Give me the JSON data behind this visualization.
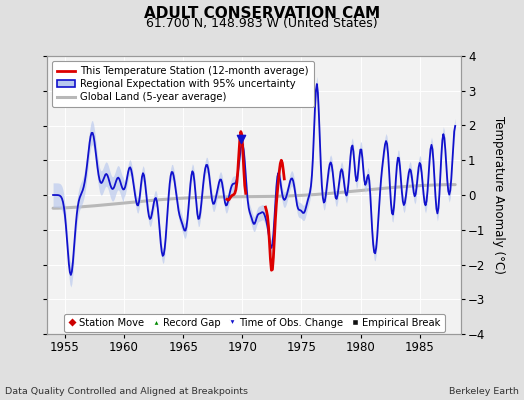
{
  "title": "ADULT CONSERVATION CAM",
  "subtitle": "61.700 N, 148.983 W (United States)",
  "ylabel": "Temperature Anomaly (°C)",
  "xlabel_left": "Data Quality Controlled and Aligned at Breakpoints",
  "xlabel_right": "Berkeley Earth",
  "xlim": [
    1953.5,
    1988.5
  ],
  "ylim": [
    -4,
    4
  ],
  "yticks": [
    -4,
    -3,
    -2,
    -1,
    0,
    1,
    2,
    3,
    4
  ],
  "xticks": [
    1955,
    1960,
    1965,
    1970,
    1975,
    1980,
    1985
  ],
  "background_color": "#e0e0e0",
  "plot_bg_color": "#f2f2f2",
  "legend_entries": [
    "This Temperature Station (12-month average)",
    "Regional Expectation with 95% uncertainty",
    "Global Land (5-year average)"
  ],
  "station_color": "#dd0000",
  "regional_color": "#1111cc",
  "regional_fill_color": "#b8c8ee",
  "global_color": "#b8b8b8",
  "global_linewidth": 2.5,
  "marker_legend": [
    {
      "label": "Station Move",
      "color": "#cc0000",
      "marker": "D"
    },
    {
      "label": "Record Gap",
      "color": "#008800",
      "marker": "^"
    },
    {
      "label": "Time of Obs. Change",
      "color": "#0000cc",
      "marker": "v"
    },
    {
      "label": "Empirical Break",
      "color": "#111111",
      "marker": "s"
    }
  ]
}
